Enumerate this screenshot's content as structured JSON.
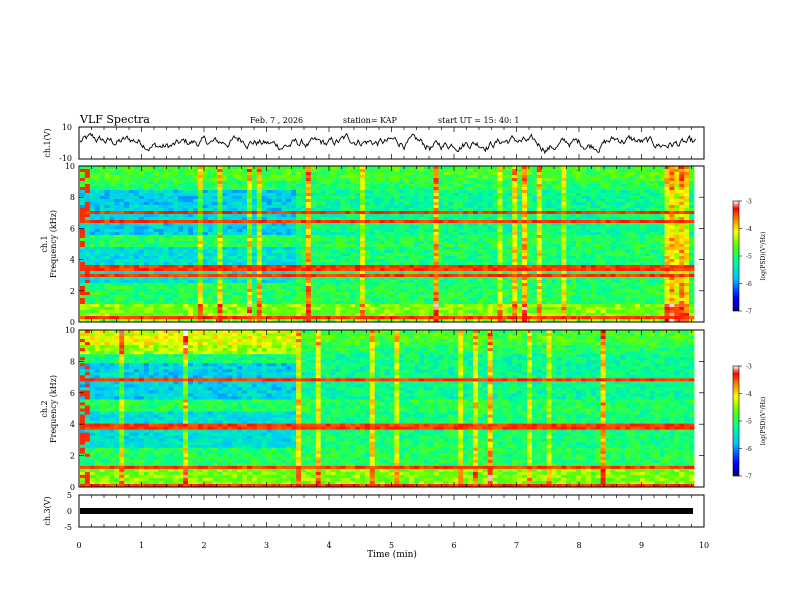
{
  "header": {
    "title": "VLF Spectra",
    "date": "Feb. 7 , 2026",
    "station": "station= KAP",
    "start_ut": "start  UT =  15: 40: 1"
  },
  "chart_data": [
    {
      "type": "line",
      "name": "ch1-waveform",
      "ylabel": "ch.1(V)",
      "ylim": [
        -10,
        10
      ],
      "yticks": [
        "10",
        "-10"
      ],
      "xlim": [
        0,
        10
      ],
      "description_values": "noisy waveform roughly between -8 and 8 V"
    },
    {
      "type": "heatmap",
      "name": "ch1-spectrogram",
      "ylabel": "ch.1\nFrequency (kHz)",
      "ylabel_lines": [
        "ch.1",
        "Frequency (kHz)"
      ],
      "ylim": [
        0,
        10
      ],
      "yticks": [
        "0",
        "2",
        "4",
        "6",
        "8",
        "10"
      ],
      "xlim": [
        0,
        10
      ],
      "colorbar": {
        "label": "log(PSD)(V²/Hz)",
        "ticks": [
          "-3",
          "-4",
          "-5",
          "-6",
          "-7"
        ],
        "range": [
          -7,
          -3
        ]
      }
    },
    {
      "type": "heatmap",
      "name": "ch2-spectrogram",
      "ylabel_lines": [
        "ch.2",
        "Frequency (kHz)"
      ],
      "ylim": [
        0,
        10
      ],
      "yticks": [
        "0",
        "2",
        "4",
        "6",
        "8",
        "10"
      ],
      "xlim": [
        0,
        10
      ],
      "colorbar": {
        "label": "log(PSD)(V²/Hz)",
        "ticks": [
          "-3",
          "-4",
          "-5",
          "-6",
          "-7"
        ],
        "range": [
          -7,
          -3
        ]
      }
    },
    {
      "type": "line",
      "name": "ch3-signal",
      "ylabel": "ch.3(V)",
      "ylim": [
        -5,
        5
      ],
      "yticks": [
        "5",
        "0",
        "-5"
      ],
      "xlim": [
        0,
        10
      ],
      "xlabel": "Time  (min)",
      "xticks": [
        "0",
        "1",
        "2",
        "3",
        "4",
        "5",
        "6",
        "7",
        "8",
        "9",
        "10"
      ]
    }
  ]
}
